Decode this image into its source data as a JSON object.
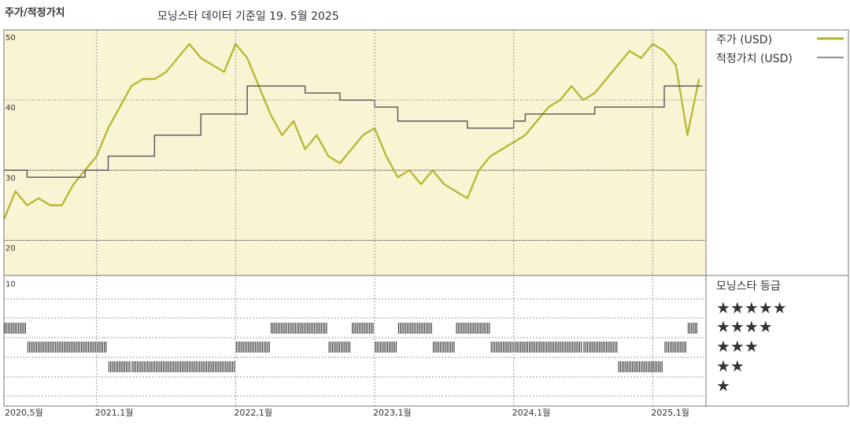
{
  "chart_data": {
    "type": "line",
    "title": "주가/적정가치",
    "subtitle": "모닝스타 데이터 기준일 19. 5월 2025",
    "x_tick_labels": [
      "2020,5월",
      "2021,1월",
      "2022,1월",
      "2023,1월",
      "2024,1월",
      "2025,1월"
    ],
    "x_range": [
      "2020-05",
      "2025-05"
    ],
    "ylim": [
      15,
      50
    ],
    "y_tick_labels": [
      "50",
      "40",
      "30",
      "20",
      "10"
    ],
    "grid": true,
    "legend_position": "right",
    "colors": {
      "price": "#b5b52a",
      "fair_value": "#555555",
      "panel_bg": "#f8f4d4",
      "star_bar": "#444444"
    },
    "series": [
      {
        "name": "주가 (USD)",
        "x": [
          "2020-05",
          "2020-06",
          "2020-07",
          "2020-08",
          "2020-09",
          "2020-10",
          "2020-11",
          "2020-12",
          "2021-01",
          "2021-02",
          "2021-03",
          "2021-04",
          "2021-05",
          "2021-06",
          "2021-07",
          "2021-08",
          "2021-09",
          "2021-10",
          "2021-11",
          "2021-12",
          "2022-01",
          "2022-02",
          "2022-03",
          "2022-04",
          "2022-05",
          "2022-06",
          "2022-07",
          "2022-08",
          "2022-09",
          "2022-10",
          "2022-11",
          "2022-12",
          "2023-01",
          "2023-02",
          "2023-03",
          "2023-04",
          "2023-05",
          "2023-06",
          "2023-07",
          "2023-08",
          "2023-09",
          "2023-10",
          "2023-11",
          "2023-12",
          "2024-01",
          "2024-02",
          "2024-03",
          "2024-04",
          "2024-05",
          "2024-06",
          "2024-07",
          "2024-08",
          "2024-09",
          "2024-10",
          "2024-11",
          "2024-12",
          "2025-01",
          "2025-02",
          "2025-03",
          "2025-04",
          "2025-05"
        ],
        "values": [
          23,
          27,
          25,
          26,
          25,
          25,
          28,
          30,
          32,
          36,
          39,
          42,
          43,
          43,
          44,
          46,
          48,
          46,
          45,
          44,
          48,
          46,
          42,
          38,
          35,
          37,
          33,
          35,
          32,
          31,
          33,
          35,
          36,
          32,
          29,
          30,
          28,
          30,
          28,
          27,
          26,
          30,
          32,
          33,
          34,
          35,
          37,
          39,
          40,
          42,
          40,
          41,
          43,
          45,
          47,
          46,
          48,
          47,
          45,
          35,
          43
        ],
        "color": "#b5b52a"
      },
      {
        "name": "적정가치 (USD)",
        "x": [
          "2020-05",
          "2020-06",
          "2020-07",
          "2020-08",
          "2020-09",
          "2020-10",
          "2020-11",
          "2020-12",
          "2021-01",
          "2021-02",
          "2021-03",
          "2021-04",
          "2021-05",
          "2021-06",
          "2021-07",
          "2021-08",
          "2021-09",
          "2021-10",
          "2021-11",
          "2021-12",
          "2022-01",
          "2022-02",
          "2022-03",
          "2022-04",
          "2022-05",
          "2022-06",
          "2022-07",
          "2022-08",
          "2022-09",
          "2022-10",
          "2022-11",
          "2022-12",
          "2023-01",
          "2023-02",
          "2023-03",
          "2023-04",
          "2023-05",
          "2023-06",
          "2023-07",
          "2023-08",
          "2023-09",
          "2023-10",
          "2023-11",
          "2023-12",
          "2024-01",
          "2024-02",
          "2024-03",
          "2024-04",
          "2024-05",
          "2024-06",
          "2024-07",
          "2024-08",
          "2024-09",
          "2024-10",
          "2024-11",
          "2024-12",
          "2025-01",
          "2025-02",
          "2025-03",
          "2025-04",
          "2025-05"
        ],
        "values": [
          30,
          30,
          29,
          29,
          29,
          29,
          29,
          30,
          30,
          32,
          32,
          32,
          32,
          35,
          35,
          35,
          35,
          38,
          38,
          38,
          38,
          42,
          42,
          42,
          42,
          42,
          41,
          41,
          41,
          40,
          40,
          40,
          39,
          39,
          37,
          37,
          37,
          37,
          37,
          37,
          36,
          36,
          36,
          36,
          37,
          38,
          38,
          38,
          38,
          38,
          38,
          39,
          39,
          39,
          39,
          39,
          39,
          42,
          42,
          42,
          42
        ],
        "color": "#555555"
      }
    ],
    "rating_panel": {
      "title": "모닝스타 등급",
      "levels": [
        "★★★★★",
        "★★★★",
        "★★★",
        "★★",
        "★"
      ],
      "periods": [
        {
          "start": "2020-05",
          "end": "2020-07",
          "stars": 4
        },
        {
          "start": "2020-07",
          "end": "2021-01",
          "stars": 3
        },
        {
          "start": "2021-01",
          "end": "2021-02",
          "stars": 3
        },
        {
          "start": "2021-02",
          "end": "2021-04",
          "stars": 2
        },
        {
          "start": "2021-04",
          "end": "2022-01",
          "stars": 2
        },
        {
          "start": "2022-01",
          "end": "2022-04",
          "stars": 3
        },
        {
          "start": "2022-04",
          "end": "2022-09",
          "stars": 4
        },
        {
          "start": "2022-09",
          "end": "2022-11",
          "stars": 3
        },
        {
          "start": "2022-11",
          "end": "2023-01",
          "stars": 4
        },
        {
          "start": "2023-01",
          "end": "2023-03",
          "stars": 3
        },
        {
          "start": "2023-03",
          "end": "2023-06",
          "stars": 4
        },
        {
          "start": "2023-06",
          "end": "2023-08",
          "stars": 3
        },
        {
          "start": "2023-08",
          "end": "2023-11",
          "stars": 4
        },
        {
          "start": "2023-11",
          "end": "2024-07",
          "stars": 3
        },
        {
          "start": "2024-07",
          "end": "2024-10",
          "stars": 3
        },
        {
          "start": "2024-10",
          "end": "2025-02",
          "stars": 2
        },
        {
          "start": "2025-02",
          "end": "2025-04",
          "stars": 3
        },
        {
          "start": "2025-04",
          "end": "2025-05",
          "stars": 4
        }
      ]
    }
  }
}
